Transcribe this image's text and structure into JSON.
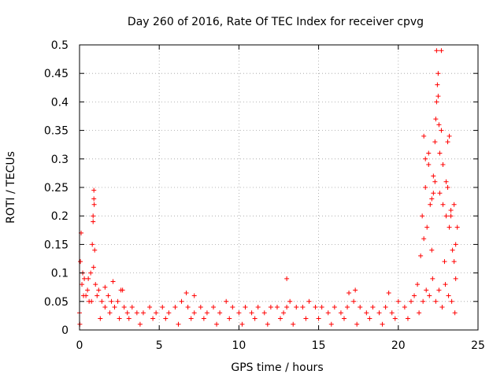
{
  "chart_data": {
    "type": "scatter",
    "title": "Day 260 of 2016, Rate Of TEC Index for receiver cpvg",
    "xlabel": "GPS time / hours",
    "ylabel": "ROTI / TECUs",
    "xlim": [
      0,
      25
    ],
    "ylim": [
      0,
      0.5
    ],
    "grid": true,
    "marker": "+",
    "color": "#ff0000",
    "xticks": [
      0,
      5,
      10,
      15,
      20,
      25
    ],
    "xtick_labels": [
      "0",
      "5",
      "10",
      "15",
      "20",
      "25"
    ],
    "yticks": [
      0,
      0.05,
      0.1,
      0.15,
      0.2,
      0.25,
      0.3,
      0.35,
      0.4,
      0.45,
      0.5
    ],
    "ytick_labels": [
      "0",
      "0.05",
      "0.1",
      "0.15",
      "0.2",
      "0.25",
      "0.3",
      "0.35",
      "0.4",
      "0.45",
      "0.5"
    ],
    "series": [
      {
        "name": "cpvg",
        "x": [
          0.0,
          0.05,
          0.1,
          0.15,
          0.2,
          0.3,
          0.4,
          0.5,
          0.6,
          0.7,
          0.8,
          0.85,
          0.9,
          0.95,
          1.0,
          1.1,
          1.2,
          1.4,
          1.6,
          1.8,
          2.0,
          2.2,
          2.4,
          2.6,
          2.8,
          3.0,
          3.3,
          3.6,
          4.0,
          4.4,
          4.8,
          5.2,
          5.6,
          6.0,
          6.4,
          6.8,
          7.2,
          7.6,
          8.0,
          8.4,
          8.8,
          9.2,
          9.6,
          10.0,
          10.4,
          10.8,
          11.2,
          11.6,
          12.0,
          12.4,
          12.8,
          13.0,
          13.2,
          13.6,
          14.0,
          14.4,
          14.8,
          15.2,
          15.6,
          16.0,
          16.4,
          16.8,
          17.2,
          17.6,
          18.0,
          18.4,
          18.8,
          19.2,
          19.6,
          20.0,
          20.4,
          20.8,
          21.0,
          21.2,
          21.4,
          21.5,
          21.6,
          21.7,
          21.8,
          21.9,
          22.0,
          22.1,
          22.2,
          22.3,
          22.4,
          22.5,
          22.6,
          22.7,
          22.8,
          22.9,
          23.0,
          23.1,
          23.2,
          23.3,
          23.4,
          23.5,
          23.6,
          23.7,
          0.02,
          0.25,
          0.55,
          0.75,
          0.88,
          1.3,
          1.9,
          2.5,
          3.1,
          3.8,
          4.6,
          5.4,
          6.2,
          7.0,
          7.8,
          8.6,
          9.4,
          10.2,
          11.0,
          11.8,
          12.6,
          13.4,
          14.2,
          15.0,
          15.8,
          16.6,
          17.4,
          18.2,
          19.0,
          19.8,
          20.6,
          21.3,
          21.55,
          21.75,
          21.95,
          22.15,
          22.35,
          22.55,
          22.75,
          22.95,
          23.15,
          23.35,
          23.55,
          0.9,
          0.85,
          0.92,
          1.6,
          2.1,
          2.7,
          6.7,
          7.2,
          13.0,
          16.9,
          17.3,
          19.4,
          21.6,
          21.7,
          21.9,
          22.1,
          22.2,
          22.3,
          22.35,
          22.4,
          22.45,
          22.5,
          22.55,
          22.6,
          22.7,
          22.8,
          23.0,
          23.1,
          23.2,
          23.3,
          23.5,
          23.6
        ],
        "y": [
          0.03,
          0.12,
          0.17,
          0.08,
          0.1,
          0.09,
          0.06,
          0.07,
          0.05,
          0.1,
          0.15,
          0.19,
          0.23,
          0.14,
          0.08,
          0.06,
          0.07,
          0.05,
          0.04,
          0.06,
          0.05,
          0.04,
          0.05,
          0.07,
          0.04,
          0.03,
          0.04,
          0.03,
          0.03,
          0.04,
          0.03,
          0.04,
          0.03,
          0.04,
          0.05,
          0.04,
          0.03,
          0.04,
          0.03,
          0.04,
          0.03,
          0.05,
          0.04,
          0.03,
          0.04,
          0.03,
          0.04,
          0.03,
          0.04,
          0.04,
          0.03,
          0.04,
          0.05,
          0.04,
          0.04,
          0.05,
          0.04,
          0.04,
          0.03,
          0.04,
          0.03,
          0.04,
          0.05,
          0.04,
          0.03,
          0.04,
          0.03,
          0.04,
          0.03,
          0.05,
          0.04,
          0.05,
          0.06,
          0.08,
          0.13,
          0.2,
          0.16,
          0.25,
          0.18,
          0.29,
          0.22,
          0.14,
          0.27,
          0.33,
          0.4,
          0.45,
          0.24,
          0.35,
          0.22,
          0.12,
          0.2,
          0.25,
          0.18,
          0.21,
          0.14,
          0.12,
          0.09,
          0.18,
          0.01,
          0.06,
          0.09,
          0.05,
          0.11,
          0.02,
          0.03,
          0.02,
          0.02,
          0.01,
          0.02,
          0.02,
          0.01,
          0.02,
          0.02,
          0.01,
          0.02,
          0.01,
          0.02,
          0.01,
          0.02,
          0.01,
          0.02,
          0.02,
          0.01,
          0.02,
          0.01,
          0.02,
          0.01,
          0.02,
          0.02,
          0.03,
          0.05,
          0.07,
          0.06,
          0.09,
          0.05,
          0.07,
          0.04,
          0.08,
          0.06,
          0.05,
          0.03,
          0.245,
          0.2,
          0.22,
          0.075,
          0.085,
          0.07,
          0.065,
          0.06,
          0.09,
          0.065,
          0.07,
          0.065,
          0.34,
          0.3,
          0.31,
          0.23,
          0.24,
          0.26,
          0.37,
          0.49,
          0.43,
          0.41,
          0.36,
          0.31,
          0.49,
          0.29,
          0.26,
          0.33,
          0.34,
          0.2,
          0.22,
          0.15
        ]
      }
    ]
  }
}
